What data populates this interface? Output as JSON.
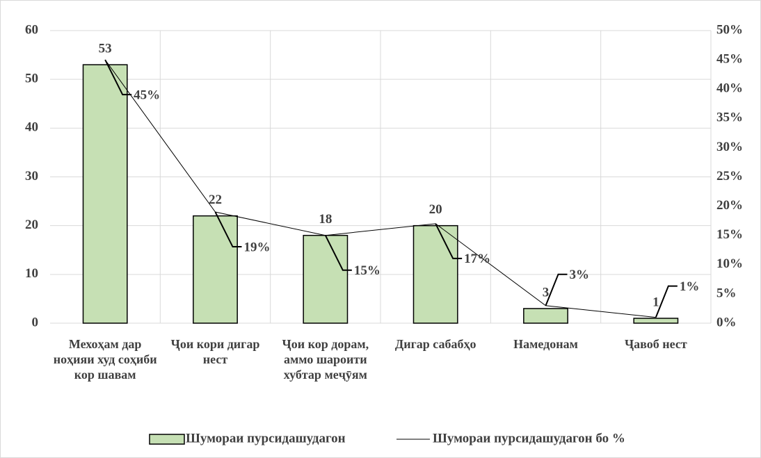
{
  "chart_data": {
    "type": "bar-line",
    "categories": [
      "Мехоҳам дар ноҳияи худ соҳиби кор шавам",
      "Ҷои кори дигар нест",
      "Ҷои кор дорам, аммо шароити хубтар меҷӯям",
      "Дигар сабабҳо",
      "Намедонам",
      "Ҷавоб нест"
    ],
    "series": [
      {
        "name": "Шумораи пурсидашудагон",
        "type": "bar",
        "color": "#c6e0b4",
        "values": [
          53,
          22,
          18,
          20,
          3,
          1
        ]
      },
      {
        "name": "Шумораи пурсидашудагон бо %",
        "type": "line",
        "axis": "y2",
        "color": "#000000",
        "values": [
          45,
          19,
          15,
          17,
          3,
          1
        ],
        "value_labels": [
          "45%",
          "19%",
          "15%",
          "17%",
          "3%",
          "1%"
        ]
      }
    ],
    "ylim": [
      0,
      60
    ],
    "yticks": [
      0,
      10,
      20,
      30,
      40,
      50,
      60
    ],
    "y2lim": [
      0,
      50
    ],
    "y2ticks": [
      {
        "value": 0,
        "label": "0%"
      },
      {
        "value": 5,
        "label": "5%"
      },
      {
        "value": 10,
        "label": "10%"
      },
      {
        "value": 15,
        "label": "15%"
      },
      {
        "value": 20,
        "label": "20%"
      },
      {
        "value": 25,
        "label": "25%"
      },
      {
        "value": 30,
        "label": "30%"
      },
      {
        "value": 35,
        "label": "35%"
      },
      {
        "value": 40,
        "label": "40%"
      },
      {
        "value": 45,
        "label": "45%"
      },
      {
        "value": 50,
        "label": "50%"
      }
    ],
    "grid": true,
    "legend": "bottom"
  }
}
